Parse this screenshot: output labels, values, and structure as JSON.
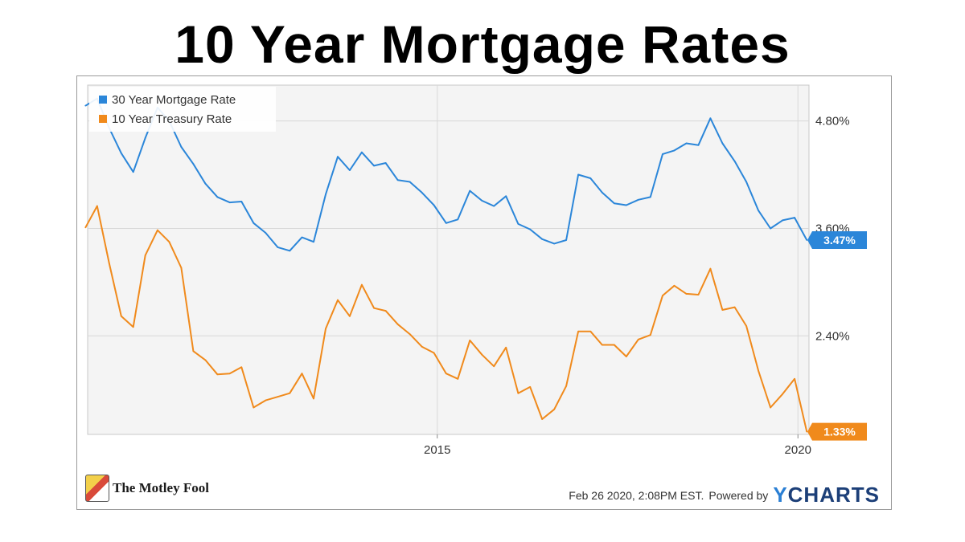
{
  "title": "10 Year Mortgage Rates",
  "footer": {
    "logo_text": "The Motley Fool",
    "timestamp": "Feb 26 2020, 2:08PM EST.",
    "powered_by": "Powered by",
    "brand_prefix": "Y",
    "brand_rest": "CHARTS"
  },
  "colors": {
    "mortgage": "#2b86d9",
    "treasury": "#f08a1c",
    "grid": "#d8d8d8",
    "plot_bg": "#f4f4f4"
  },
  "chart_data": {
    "type": "line",
    "title": "",
    "xlabel": "",
    "ylabel": "",
    "x_ticks": [
      "2015",
      "2020"
    ],
    "y_ticks": [
      "2.40%",
      "3.60%",
      "4.80%"
    ],
    "y_tick_values": [
      2.4,
      3.6,
      4.8
    ],
    "ylim": [
      1.3,
      5.2
    ],
    "xlim": [
      "2010-02-26",
      "2020-02-26"
    ],
    "grid": true,
    "legend_position": "top-left",
    "series": [
      {
        "name": "30 Year Mortgage Rate",
        "last_value_label": "3.47%",
        "x": [
          "2010-02",
          "2010-04",
          "2010-06",
          "2010-08",
          "2010-10",
          "2010-12",
          "2011-02",
          "2011-04",
          "2011-06",
          "2011-08",
          "2011-10",
          "2011-12",
          "2012-02",
          "2012-04",
          "2012-06",
          "2012-08",
          "2012-10",
          "2012-12",
          "2013-02",
          "2013-04",
          "2013-06",
          "2013-08",
          "2013-10",
          "2013-12",
          "2014-02",
          "2014-04",
          "2014-06",
          "2014-08",
          "2014-10",
          "2014-12",
          "2015-02",
          "2015-04",
          "2015-06",
          "2015-08",
          "2015-10",
          "2015-12",
          "2016-02",
          "2016-04",
          "2016-06",
          "2016-08",
          "2016-10",
          "2016-12",
          "2017-02",
          "2017-04",
          "2017-06",
          "2017-08",
          "2017-10",
          "2017-12",
          "2018-02",
          "2018-04",
          "2018-06",
          "2018-08",
          "2018-10",
          "2018-12",
          "2019-02",
          "2019-04",
          "2019-06",
          "2019-08",
          "2019-10",
          "2019-12",
          "2020-02"
        ],
        "values": [
          4.97,
          5.05,
          4.72,
          4.44,
          4.23,
          4.61,
          4.95,
          4.8,
          4.51,
          4.32,
          4.1,
          3.95,
          3.89,
          3.9,
          3.66,
          3.55,
          3.39,
          3.35,
          3.5,
          3.45,
          3.98,
          4.4,
          4.25,
          4.45,
          4.3,
          4.33,
          4.14,
          4.12,
          4.0,
          3.86,
          3.66,
          3.7,
          4.02,
          3.91,
          3.85,
          3.96,
          3.65,
          3.59,
          3.48,
          3.43,
          3.47,
          4.2,
          4.16,
          4.0,
          3.88,
          3.86,
          3.92,
          3.95,
          4.43,
          4.47,
          4.55,
          4.53,
          4.83,
          4.55,
          4.35,
          4.12,
          3.8,
          3.6,
          3.69,
          3.72,
          3.47
        ]
      },
      {
        "name": "10 Year Treasury Rate",
        "last_value_label": "1.33%",
        "x": [
          "2010-02",
          "2010-04",
          "2010-06",
          "2010-08",
          "2010-10",
          "2010-12",
          "2011-02",
          "2011-04",
          "2011-06",
          "2011-08",
          "2011-10",
          "2011-12",
          "2012-02",
          "2012-04",
          "2012-06",
          "2012-08",
          "2012-10",
          "2012-12",
          "2013-02",
          "2013-04",
          "2013-06",
          "2013-08",
          "2013-10",
          "2013-12",
          "2014-02",
          "2014-04",
          "2014-06",
          "2014-08",
          "2014-10",
          "2014-12",
          "2015-02",
          "2015-04",
          "2015-06",
          "2015-08",
          "2015-10",
          "2015-12",
          "2016-02",
          "2016-04",
          "2016-06",
          "2016-08",
          "2016-10",
          "2016-12",
          "2017-02",
          "2017-04",
          "2017-06",
          "2017-08",
          "2017-10",
          "2017-12",
          "2018-02",
          "2018-04",
          "2018-06",
          "2018-08",
          "2018-10",
          "2018-12",
          "2019-02",
          "2019-04",
          "2019-06",
          "2019-08",
          "2019-10",
          "2019-12",
          "2020-02"
        ],
        "values": [
          3.61,
          3.85,
          3.21,
          2.62,
          2.5,
          3.3,
          3.58,
          3.45,
          3.16,
          2.23,
          2.13,
          1.97,
          1.98,
          2.05,
          1.6,
          1.68,
          1.72,
          1.76,
          1.98,
          1.7,
          2.48,
          2.8,
          2.62,
          2.97,
          2.71,
          2.68,
          2.53,
          2.42,
          2.28,
          2.21,
          1.98,
          1.92,
          2.35,
          2.19,
          2.06,
          2.27,
          1.76,
          1.83,
          1.47,
          1.58,
          1.84,
          2.45,
          2.45,
          2.3,
          2.3,
          2.17,
          2.36,
          2.41,
          2.85,
          2.96,
          2.87,
          2.86,
          3.15,
          2.69,
          2.72,
          2.51,
          2.01,
          1.6,
          1.75,
          1.92,
          1.33
        ]
      }
    ]
  }
}
